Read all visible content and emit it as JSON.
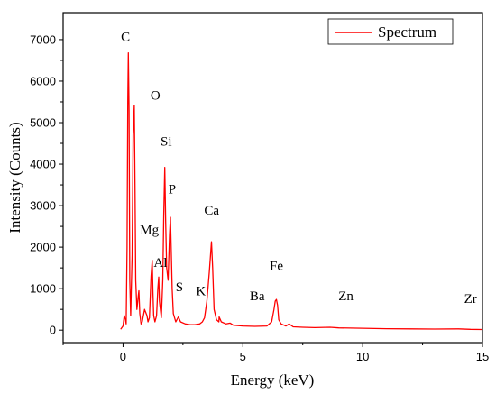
{
  "chart_data": {
    "type": "line",
    "title": "",
    "xlabel": "Energy (keV)",
    "ylabel": "Intensity (Counts)",
    "xlim": [
      -2.5,
      15
    ],
    "ylim": [
      -300,
      7650
    ],
    "x_ticks": [
      0,
      5,
      10,
      15
    ],
    "y_ticks": [
      0,
      1000,
      2000,
      3000,
      4000,
      5000,
      6000,
      7000
    ],
    "grid": false,
    "legend_position": "top-right",
    "series_color": "#ff0000",
    "series": [
      {
        "name": "Spectrum",
        "x": [
          -0.1,
          0.0,
          0.05,
          0.1,
          0.13,
          0.17,
          0.2,
          0.22,
          0.25,
          0.28,
          0.32,
          0.38,
          0.42,
          0.47,
          0.5,
          0.53,
          0.58,
          0.63,
          0.66,
          0.7,
          0.75,
          0.8,
          0.9,
          1.0,
          1.04,
          1.1,
          1.17,
          1.22,
          1.25,
          1.28,
          1.33,
          1.4,
          1.45,
          1.49,
          1.52,
          1.6,
          1.66,
          1.7,
          1.74,
          1.78,
          1.82,
          1.88,
          1.94,
          1.98,
          2.01,
          2.05,
          2.1,
          2.2,
          2.31,
          2.4,
          2.6,
          2.8,
          3.0,
          3.2,
          3.31,
          3.4,
          3.5,
          3.6,
          3.69,
          3.74,
          3.8,
          3.9,
          4.0,
          4.01,
          4.1,
          4.3,
          4.47,
          4.6,
          5.0,
          5.5,
          6.0,
          6.2,
          6.3,
          6.35,
          6.4,
          6.45,
          6.5,
          6.6,
          6.8,
          6.93,
          7.1,
          7.5,
          8.0,
          8.64,
          9.0,
          10.0,
          11.0,
          12.0,
          13.0,
          14.0,
          14.5,
          15.0
        ],
        "values": [
          20,
          100,
          350,
          250,
          150,
          2000,
          5500,
          6680,
          5300,
          1200,
          350,
          1800,
          4700,
          5420,
          3500,
          1200,
          500,
          800,
          950,
          400,
          150,
          200,
          500,
          350,
          200,
          300,
          1300,
          1680,
          900,
          350,
          200,
          350,
          1000,
          1280,
          700,
          300,
          1200,
          2800,
          3920,
          2600,
          1500,
          1200,
          2300,
          2720,
          2000,
          1000,
          400,
          200,
          320,
          200,
          150,
          130,
          130,
          150,
          200,
          300,
          700,
          1400,
          2130,
          1500,
          500,
          250,
          200,
          320,
          200,
          150,
          170,
          120,
          100,
          90,
          100,
          200,
          500,
          700,
          740,
          600,
          250,
          150,
          100,
          150,
          80,
          70,
          60,
          70,
          55,
          45,
          35,
          30,
          25,
          30,
          20,
          15
        ]
      }
    ],
    "annotations": [
      {
        "text": "C",
        "x": 0.1,
        "y": 6970
      },
      {
        "text": "O",
        "x": 1.35,
        "y": 5550
      },
      {
        "text": "Si",
        "x": 1.8,
        "y": 4450
      },
      {
        "text": "P",
        "x": 2.05,
        "y": 3300
      },
      {
        "text": "Mg",
        "x": 1.1,
        "y": 2320
      },
      {
        "text": "Al",
        "x": 1.56,
        "y": 1520
      },
      {
        "text": "S",
        "x": 2.35,
        "y": 940
      },
      {
        "text": "K",
        "x": 3.25,
        "y": 840
      },
      {
        "text": "Ca",
        "x": 3.7,
        "y": 2780
      },
      {
        "text": "Fe",
        "x": 6.4,
        "y": 1450
      },
      {
        "text": "Ba",
        "x": 5.6,
        "y": 720
      },
      {
        "text": "Zn",
        "x": 9.3,
        "y": 720
      },
      {
        "text": "Zr",
        "x": 14.5,
        "y": 660
      }
    ]
  }
}
